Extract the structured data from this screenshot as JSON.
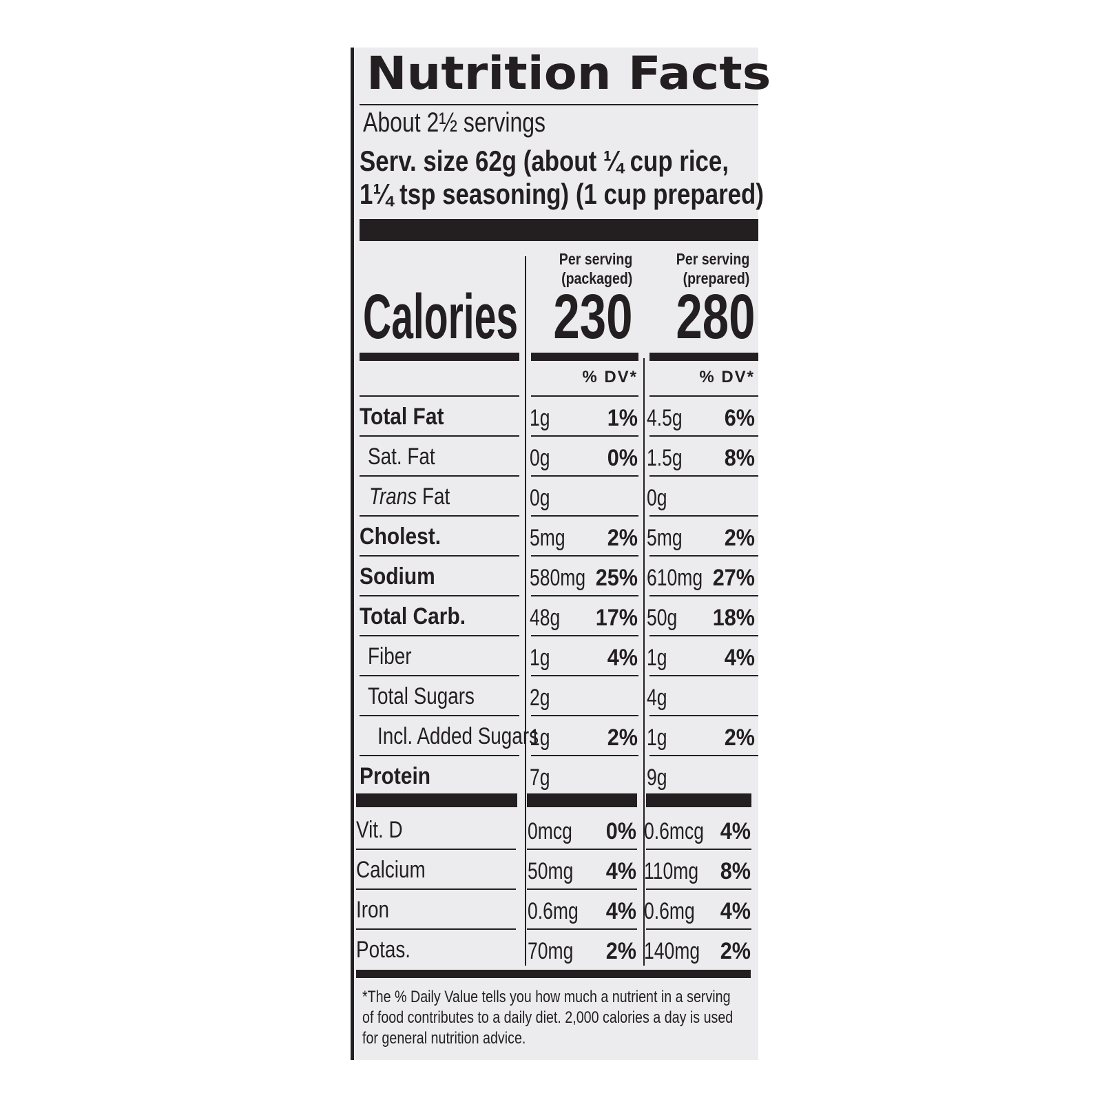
{
  "label": {
    "title": "Nutrition Facts",
    "servings": "About 2½ servings",
    "serving_size_line1": "Serv. size  62g (about ¼ cup rice,",
    "serving_size_line2": "1¼ tsp seasoning) (1 cup prepared)",
    "col_packaged_line1": "Per serving",
    "col_packaged_line2": "(packaged)",
    "col_prepared_line1": "Per serving",
    "col_prepared_line2": "(prepared)",
    "calories_label": "Calories",
    "calories_packaged": "230",
    "calories_prepared": "280",
    "dv_header": "% DV*",
    "footnote": "*The % Daily Value tells you how much a nutrient in a serving of food contributes to a daily diet. 2,000 calories a day is used for general nutrition advice."
  },
  "nutrients": [
    {
      "name": "Total Fat",
      "pkg_amt": "1g",
      "pkg_pct": "1%",
      "prep_amt": "4.5g",
      "prep_pct": "6%"
    },
    {
      "name": "Sat. Fat",
      "pkg_amt": "0g",
      "pkg_pct": "0%",
      "prep_amt": "1.5g",
      "prep_pct": "8%"
    },
    {
      "name_italic": "Trans",
      "name_rest": " Fat",
      "pkg_amt": "0g",
      "pkg_pct": "",
      "prep_amt": "0g",
      "prep_pct": ""
    },
    {
      "name": "Cholest.",
      "pkg_amt": "5mg",
      "pkg_pct": "2%",
      "prep_amt": "5mg",
      "prep_pct": "2%"
    },
    {
      "name": "Sodium",
      "pkg_amt": "580mg",
      "pkg_pct": "25%",
      "prep_amt": "610mg",
      "prep_pct": "27%"
    },
    {
      "name": "Total Carb.",
      "pkg_amt": "48g",
      "pkg_pct": "17%",
      "prep_amt": "50g",
      "prep_pct": "18%"
    },
    {
      "name": "Fiber",
      "pkg_amt": "1g",
      "pkg_pct": "4%",
      "prep_amt": "1g",
      "prep_pct": "4%"
    },
    {
      "name": "Total Sugars",
      "pkg_amt": "2g",
      "pkg_pct": "",
      "prep_amt": "4g",
      "prep_pct": ""
    },
    {
      "name": "Incl. Added Sugars",
      "pkg_amt": "1g",
      "pkg_pct": "2%",
      "prep_amt": "1g",
      "prep_pct": "2%"
    },
    {
      "name": "Protein",
      "pkg_amt": "7g",
      "pkg_pct": "",
      "prep_amt": "9g",
      "prep_pct": ""
    }
  ],
  "vitamins": [
    {
      "name": "Vit. D",
      "pkg_amt": "0mcg",
      "pkg_pct": "0%",
      "prep_amt": "0.6mcg",
      "prep_pct": "4%"
    },
    {
      "name": "Calcium",
      "pkg_amt": "50mg",
      "pkg_pct": "4%",
      "prep_amt": "110mg",
      "prep_pct": "8%"
    },
    {
      "name": "Iron",
      "pkg_amt": "0.6mg",
      "pkg_pct": "4%",
      "prep_amt": "0.6mg",
      "prep_pct": "4%"
    },
    {
      "name": "Potas.",
      "pkg_amt": "70mg",
      "pkg_pct": "2%",
      "prep_amt": "140mg",
      "prep_pct": "2%"
    }
  ]
}
